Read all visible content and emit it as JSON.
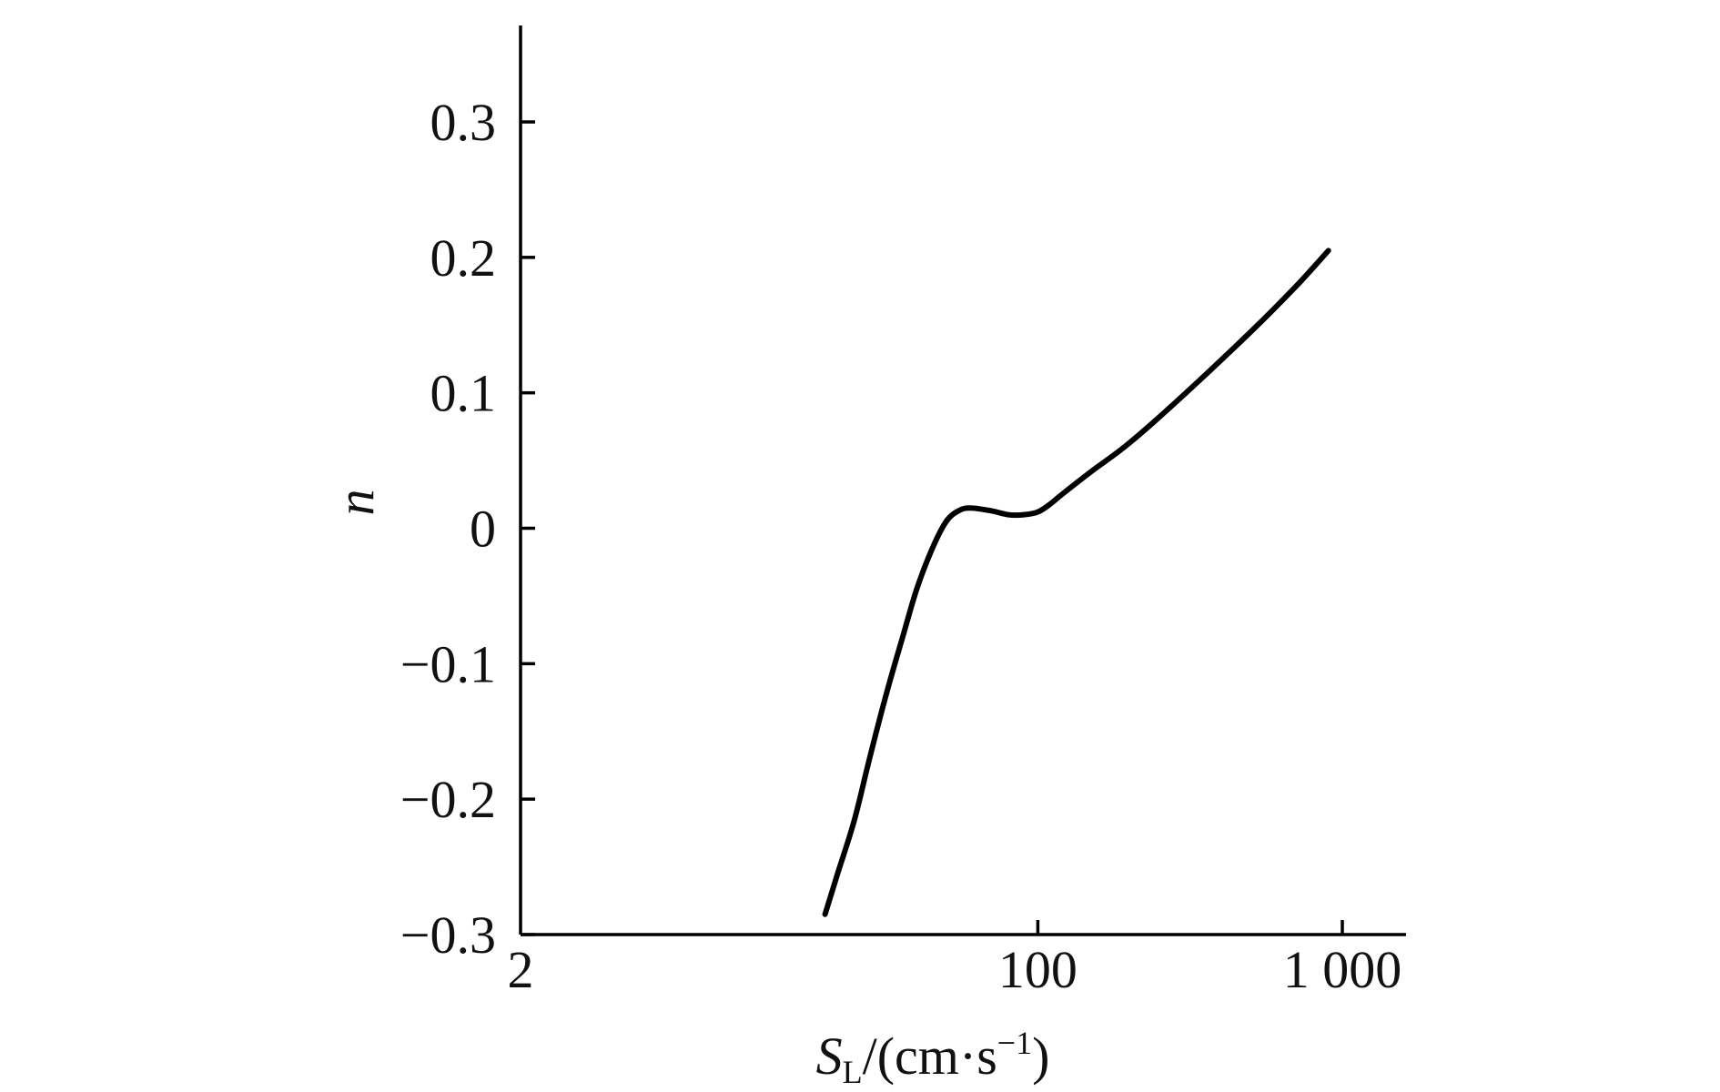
{
  "chart_data": {
    "type": "line",
    "title": "",
    "xlabel": {
      "base": "S",
      "subscript": "L",
      "unit_open": "/(cm·s",
      "unit_exp": "−1",
      "unit_close": ")"
    },
    "ylabel": "n",
    "x_scale": "log",
    "xlim": [
      2,
      1500
    ],
    "ylim": [
      -0.3,
      0.36
    ],
    "x_ticks": [
      {
        "value": 2,
        "label": "2"
      },
      {
        "value": 100,
        "label": "100"
      },
      {
        "value": 1000,
        "label": "1 000"
      }
    ],
    "y_ticks": [
      {
        "value": 0.3,
        "label": "0.3"
      },
      {
        "value": 0.2,
        "label": "0.2"
      },
      {
        "value": 0.1,
        "label": "0.1"
      },
      {
        "value": 0,
        "label": "0"
      },
      {
        "value": -0.1,
        "label": "−0.1"
      },
      {
        "value": -0.2,
        "label": "−0.2"
      },
      {
        "value": -0.3,
        "label": "−0.3"
      }
    ],
    "grid": false,
    "series": [
      {
        "color": "#000000",
        "x": [
          20,
          22,
          25,
          28,
          32,
          36,
          40,
          45,
          50,
          55,
          60,
          70,
          80,
          90,
          100,
          110,
          120,
          150,
          200,
          300,
          500,
          700,
          900
        ],
        "y": [
          -0.285,
          -0.255,
          -0.215,
          -0.17,
          -0.12,
          -0.08,
          -0.045,
          -0.015,
          0.005,
          0.013,
          0.015,
          0.013,
          0.01,
          0.01,
          0.012,
          0.018,
          0.025,
          0.042,
          0.063,
          0.098,
          0.145,
          0.178,
          0.205
        ]
      }
    ]
  }
}
